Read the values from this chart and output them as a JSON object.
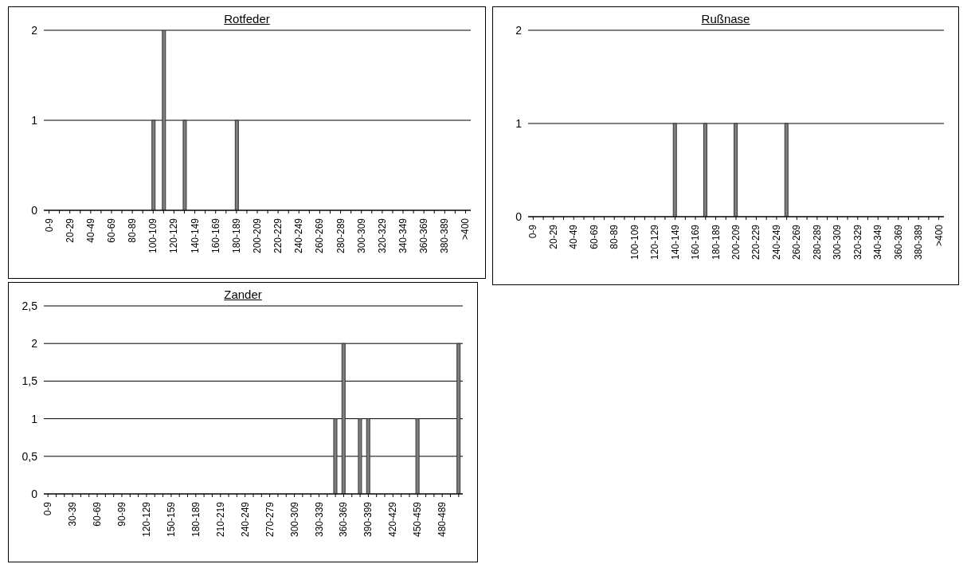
{
  "chart_data": [
    {
      "type": "bar",
      "title": "Rotfeder",
      "categories": [
        "0-9",
        null,
        "20-29",
        null,
        "40-49",
        null,
        "60-69",
        null,
        "80-89",
        null,
        "100-109",
        null,
        "120-129",
        null,
        "140-149",
        null,
        "160-169",
        null,
        "180-189",
        null,
        "200-209",
        null,
        "220-229",
        null,
        "240-249",
        null,
        "260-269",
        null,
        "280-289",
        null,
        "300-309",
        null,
        "320-329",
        null,
        "340-349",
        null,
        "360-369",
        null,
        "380-389",
        null,
        ">400"
      ],
      "values": [
        0,
        0,
        0,
        0,
        0,
        0,
        0,
        0,
        0,
        0,
        1,
        2,
        0,
        1,
        0,
        0,
        0,
        0,
        1,
        0,
        0,
        0,
        0,
        0,
        0,
        0,
        0,
        0,
        0,
        0,
        0,
        0,
        0,
        0,
        0,
        0,
        0,
        0,
        0,
        0,
        0
      ],
      "color": "#7f7f7f",
      "ylim": [
        0,
        2
      ],
      "yticks": [
        0,
        1,
        2
      ],
      "grid": "y"
    },
    {
      "type": "bar",
      "title": "Rußnase",
      "categories": [
        "0-9",
        null,
        "20-29",
        null,
        "40-49",
        null,
        "60-69",
        null,
        "80-89",
        null,
        "100-109",
        null,
        "120-129",
        null,
        "140-149",
        null,
        "160-169",
        null,
        "180-189",
        null,
        "200-209",
        null,
        "220-229",
        null,
        "240-249",
        null,
        "260-269",
        null,
        "280-289",
        null,
        "300-309",
        null,
        "320-329",
        null,
        "340-349",
        null,
        "360-369",
        null,
        "380-389",
        null,
        ">400"
      ],
      "values": [
        0,
        0,
        0,
        0,
        0,
        0,
        0,
        0,
        0,
        0,
        0,
        0,
        0,
        0,
        1,
        0,
        0,
        1,
        0,
        0,
        1,
        0,
        0,
        0,
        0,
        1,
        0,
        0,
        0,
        0,
        0,
        0,
        0,
        0,
        0,
        0,
        0,
        0,
        0,
        0,
        0
      ],
      "color": "#7f7f7f",
      "ylim": [
        0,
        2
      ],
      "yticks": [
        0,
        1,
        2
      ],
      "grid": "y"
    },
    {
      "type": "bar",
      "title": "Zander",
      "categories": [
        "0-9",
        null,
        null,
        "30-39",
        null,
        null,
        "60-69",
        null,
        null,
        "90-99",
        null,
        null,
        "120-129",
        null,
        null,
        "150-159",
        null,
        null,
        "180-189",
        null,
        null,
        "210-219",
        null,
        null,
        "240-249",
        null,
        null,
        "270-279",
        null,
        null,
        "300-309",
        null,
        null,
        "330-339",
        null,
        null,
        "360-369",
        null,
        null,
        "390-399",
        null,
        null,
        "420-429",
        null,
        null,
        "450-459",
        null,
        null,
        "480-489",
        null,
        null
      ],
      "values": [
        0,
        0,
        0,
        0,
        0,
        0,
        0,
        0,
        0,
        0,
        0,
        0,
        0,
        0,
        0,
        0,
        0,
        0,
        0,
        0,
        0,
        0,
        0,
        0,
        0,
        0,
        0,
        0,
        0,
        0,
        0,
        0,
        0,
        0,
        0,
        1,
        2,
        0,
        1,
        1,
        0,
        0,
        0,
        0,
        0,
        1,
        0,
        0,
        0,
        0,
        2
      ],
      "color": "#7f7f7f",
      "ylim": [
        0,
        2.5
      ],
      "yticks": [
        0,
        {
          "value": 0.5,
          "label": "0,5"
        },
        1,
        {
          "value": 1.5,
          "label": "1,5"
        },
        2,
        {
          "value": 2.5,
          "label": "2,5"
        }
      ],
      "grid": "y"
    }
  ]
}
